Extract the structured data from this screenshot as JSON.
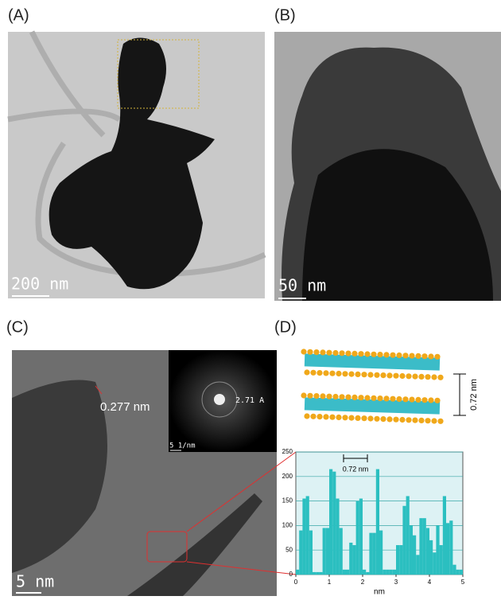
{
  "panels": {
    "a": {
      "label": "(A)",
      "scale_bar": "200 nm"
    },
    "b": {
      "label": "(B)",
      "scale_bar": "50 nm"
    },
    "c": {
      "label": "(C)",
      "scale_bar": "5 nm",
      "lattice": "0.277 nm",
      "fft_spacing": "2.71 A",
      "fft_scale": "5 1/nm"
    },
    "d": {
      "label": "(D)",
      "interlayer": "0.72 nm"
    }
  },
  "chart_data": {
    "type": "histogram",
    "xlabel": "nm",
    "annotation": "0.72 nm",
    "color": "#2bbfc0",
    "bins": [
      0,
      0.1,
      0.2,
      0.3,
      0.4,
      0.5,
      0.6,
      0.7,
      0.8,
      0.9,
      1,
      1.1,
      1.2,
      1.3,
      1.4,
      1.5,
      1.6,
      1.7,
      1.8,
      1.9,
      2,
      2.1,
      2.2,
      2.3,
      2.4,
      2.5,
      2.6,
      2.7,
      2.8,
      2.9,
      3,
      3.1,
      3.2,
      3.3,
      3.4,
      3.5,
      3.6,
      3.7,
      3.8,
      3.9,
      4,
      4.1,
      4.2,
      4.3,
      4.4,
      4.5,
      4.6,
      4.7,
      4.8,
      4.9,
      5
    ],
    "values": [
      10,
      90,
      155,
      160,
      90,
      5,
      5,
      5,
      95,
      95,
      215,
      210,
      155,
      95,
      10,
      10,
      65,
      60,
      150,
      155,
      10,
      5,
      85,
      85,
      215,
      90,
      10,
      10,
      10,
      10,
      60,
      60,
      140,
      160,
      100,
      80,
      40,
      115,
      115,
      95,
      70,
      45,
      100,
      60,
      160,
      105,
      110,
      20,
      10,
      10
    ],
    "xlim": [
      0,
      5
    ],
    "xticks": [
      0,
      1,
      2,
      3,
      4,
      5
    ],
    "ylim": [
      0,
      250
    ],
    "yticks": [
      0,
      50,
      100,
      150,
      200,
      250
    ],
    "grid": true
  }
}
